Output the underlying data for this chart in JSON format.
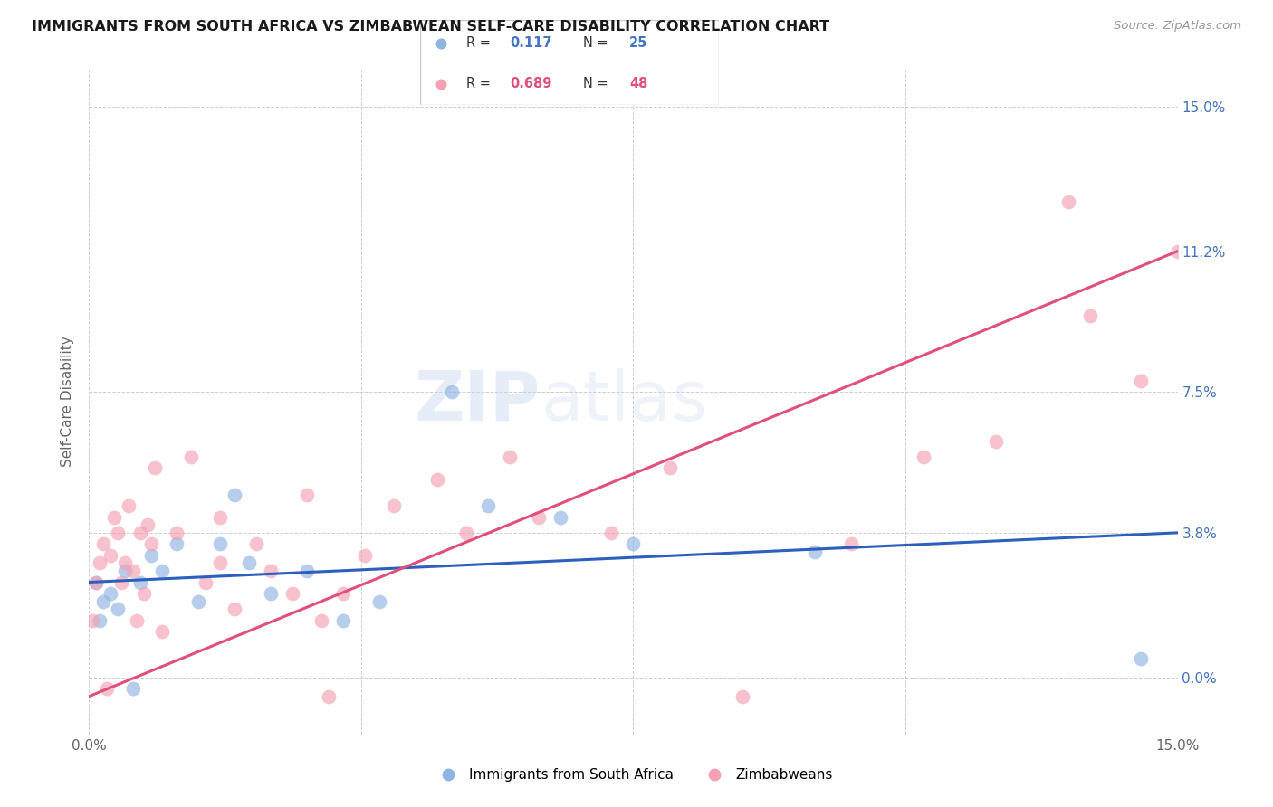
{
  "title": "IMMIGRANTS FROM SOUTH AFRICA VS ZIMBABWEAN SELF-CARE DISABILITY CORRELATION CHART",
  "source": "Source: ZipAtlas.com",
  "ylabel": "Self-Care Disability",
  "ytick_values": [
    0.0,
    3.8,
    7.5,
    11.2,
    15.0
  ],
  "xlim": [
    0.0,
    15.0
  ],
  "ylim": [
    -1.5,
    16.0
  ],
  "yaxis_min": 0.0,
  "yaxis_max": 15.0,
  "blue_color": "#90b4e2",
  "pink_color": "#f4a0b5",
  "blue_line_color": "#2c5fbe",
  "pink_line_color": "#e0507a",
  "watermark_zip_color": "#c8d8f0",
  "watermark_atlas_color": "#c8d8f0",
  "south_africa_x": [
    0.1,
    0.15,
    0.2,
    0.3,
    0.4,
    0.5,
    0.6,
    0.7,
    0.85,
    1.0,
    1.2,
    1.5,
    1.8,
    2.0,
    2.2,
    2.5,
    3.0,
    3.5,
    4.0,
    5.0,
    5.5,
    6.5,
    7.5,
    10.0,
    14.5
  ],
  "south_africa_y": [
    2.5,
    1.5,
    2.0,
    2.2,
    1.8,
    2.8,
    -0.3,
    2.5,
    3.2,
    2.8,
    3.5,
    2.0,
    3.5,
    4.8,
    3.0,
    2.2,
    2.8,
    1.5,
    2.0,
    7.5,
    4.5,
    4.2,
    3.5,
    3.3,
    0.5
  ],
  "zimbabwe_x": [
    0.05,
    0.1,
    0.15,
    0.2,
    0.25,
    0.3,
    0.35,
    0.4,
    0.45,
    0.5,
    0.55,
    0.6,
    0.65,
    0.7,
    0.75,
    0.8,
    0.85,
    0.9,
    1.0,
    1.2,
    1.4,
    1.6,
    1.8,
    2.0,
    2.3,
    2.5,
    2.8,
    3.0,
    3.2,
    3.5,
    3.8,
    4.2,
    4.8,
    5.2,
    5.8,
    6.2,
    7.2,
    8.0,
    9.0,
    10.5,
    11.5,
    12.5,
    13.5,
    13.8,
    14.5,
    15.0,
    3.3,
    1.8
  ],
  "zimbabwe_y": [
    1.5,
    2.5,
    3.0,
    3.5,
    -0.3,
    3.2,
    4.2,
    3.8,
    2.5,
    3.0,
    4.5,
    2.8,
    1.5,
    3.8,
    2.2,
    4.0,
    3.5,
    5.5,
    1.2,
    3.8,
    5.8,
    2.5,
    4.2,
    1.8,
    3.5,
    2.8,
    2.2,
    4.8,
    1.5,
    2.2,
    3.2,
    4.5,
    5.2,
    3.8,
    5.8,
    4.2,
    3.8,
    5.5,
    -0.5,
    3.5,
    5.8,
    6.2,
    12.5,
    9.5,
    7.8,
    11.2,
    -0.5,
    3.0
  ],
  "blue_reg_x0": 0.0,
  "blue_reg_y0": 2.5,
  "blue_reg_x1": 15.0,
  "blue_reg_y1": 3.8,
  "pink_reg_x0": 0.0,
  "pink_reg_y0": -0.5,
  "pink_reg_x1": 15.0,
  "pink_reg_y1": 11.2
}
